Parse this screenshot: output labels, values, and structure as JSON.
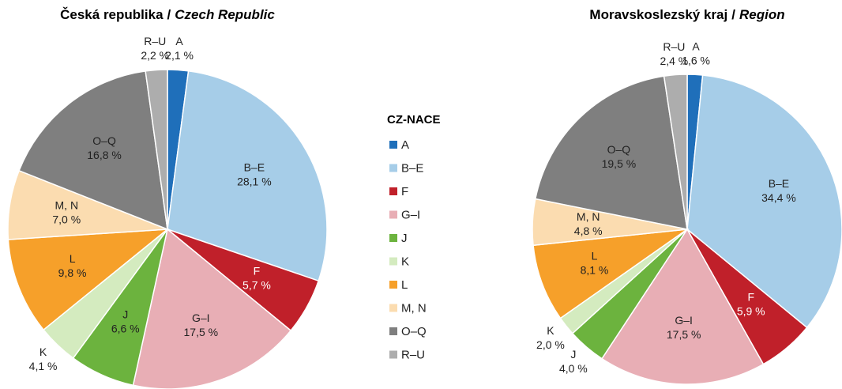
{
  "chart_data": [
    {
      "type": "pie",
      "title": [
        "Česká republika",
        "/",
        "Czech Republic"
      ],
      "categories": [
        "A",
        "B–E",
        "F",
        "G–I",
        "J",
        "K",
        "L",
        "M, N",
        "O–Q",
        "R–U"
      ],
      "values": [
        2.1,
        28.1,
        5.7,
        17.5,
        6.6,
        4.1,
        9.8,
        7.0,
        16.8,
        2.2
      ],
      "value_labels": [
        "2,1 %",
        "28,1 %",
        "5,7 %",
        "17,5 %",
        "6,6 %",
        "4,1 %",
        "9,8 %",
        "7,0 %",
        "16,8 %",
        "2,2 %"
      ],
      "colors": [
        "#1f6fba",
        "#a6cde8",
        "#c0202a",
        "#e8aeb5",
        "#6cb33e",
        "#d4ebbf",
        "#f6a02a",
        "#fbdcb0",
        "#7f7f7f",
        "#adadad"
      ]
    },
    {
      "type": "pie",
      "title": [
        "Moravskoslezský kraj",
        "/",
        "Region"
      ],
      "categories": [
        "A",
        "B–E",
        "F",
        "G–I",
        "J",
        "K",
        "L",
        "M, N",
        "O–Q",
        "R–U"
      ],
      "values": [
        1.6,
        34.4,
        5.9,
        17.5,
        4.0,
        2.0,
        8.1,
        4.8,
        19.5,
        2.4
      ],
      "value_labels": [
        "1,6 %",
        "34,4 %",
        "5,9 %",
        "17,5 %",
        "4,0 %",
        "2,0 %",
        "8,1 %",
        "4,8 %",
        "19,5 %",
        "2,4 %"
      ],
      "colors": [
        "#1f6fba",
        "#a6cde8",
        "#c0202a",
        "#e8aeb5",
        "#6cb33e",
        "#d4ebbf",
        "#f6a02a",
        "#fbdcb0",
        "#7f7f7f",
        "#adadad"
      ]
    }
  ],
  "legend": {
    "title": "CZ-NACE"
  }
}
